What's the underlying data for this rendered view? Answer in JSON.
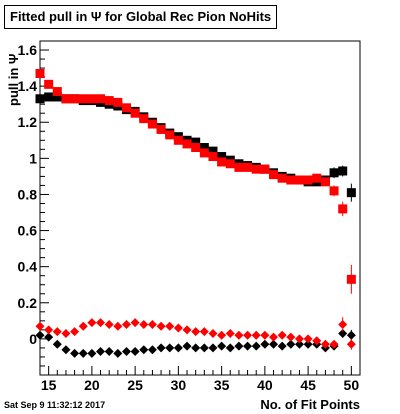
{
  "header": {
    "title": "Fitted pull in Ψ  for Global Rec Pion NoHits"
  },
  "footer": {
    "timestamp": "Sat Sep  9 11:32:12 2017"
  },
  "chart_data": {
    "type": "scatter",
    "title": "Fitted pull in Ψ  for Global Rec Pion NoHits",
    "xlabel": "No. of Fit Points",
    "ylabel": "pull in Ψ",
    "xlim": [
      14,
      51
    ],
    "ylim": [
      -0.2,
      1.65
    ],
    "xticks": [
      15,
      20,
      25,
      30,
      35,
      40,
      45,
      50
    ],
    "yticks": [
      0,
      0.2,
      0.4,
      0.6,
      0.8,
      1,
      1.2,
      1.4,
      1.6
    ],
    "ytick_labels": [
      "0",
      "0.2",
      "0.4",
      "0.6",
      "0.8",
      "1",
      "1.2",
      "1.4",
      "1.6"
    ],
    "grid": false,
    "series": [
      {
        "color": "#000000",
        "marker": "square",
        "x": [
          14,
          15,
          16,
          17,
          18,
          19,
          20,
          21,
          22,
          23,
          24,
          25,
          26,
          27,
          28,
          29,
          30,
          31,
          32,
          33,
          34,
          35,
          36,
          37,
          38,
          39,
          40,
          41,
          42,
          43,
          44,
          45,
          46,
          47,
          48,
          49,
          50
        ],
        "y": [
          1.33,
          1.34,
          1.34,
          1.33,
          1.33,
          1.32,
          1.32,
          1.31,
          1.3,
          1.29,
          1.27,
          1.26,
          1.23,
          1.2,
          1.17,
          1.14,
          1.12,
          1.1,
          1.09,
          1.06,
          1.04,
          1.01,
          0.99,
          0.97,
          0.96,
          0.95,
          0.94,
          0.92,
          0.9,
          0.89,
          0.88,
          0.87,
          0.87,
          0.88,
          0.92,
          0.93,
          0.81
        ],
        "yerr": [
          0.01,
          0.01,
          0.01,
          0.01,
          0.01,
          0.01,
          0.01,
          0.01,
          0.01,
          0.01,
          0.01,
          0.01,
          0.01,
          0.01,
          0.01,
          0.01,
          0.01,
          0.01,
          0.01,
          0.01,
          0.01,
          0.01,
          0.01,
          0.01,
          0.01,
          0.01,
          0.01,
          0.01,
          0.01,
          0.01,
          0.01,
          0.01,
          0.01,
          0.01,
          0.03,
          0.03,
          0.05
        ]
      },
      {
        "color": "#ff0000",
        "marker": "square",
        "x": [
          14,
          15,
          16,
          17,
          18,
          19,
          20,
          21,
          22,
          23,
          24,
          25,
          26,
          27,
          28,
          29,
          30,
          31,
          32,
          33,
          34,
          35,
          36,
          37,
          38,
          39,
          40,
          41,
          42,
          43,
          44,
          45,
          46,
          47,
          48,
          49,
          50
        ],
        "y": [
          1.47,
          1.41,
          1.37,
          1.33,
          1.33,
          1.33,
          1.33,
          1.33,
          1.32,
          1.31,
          1.28,
          1.25,
          1.22,
          1.19,
          1.16,
          1.13,
          1.1,
          1.08,
          1.06,
          1.03,
          1.01,
          0.98,
          0.97,
          0.95,
          0.95,
          0.94,
          0.94,
          0.91,
          0.89,
          0.88,
          0.88,
          0.88,
          0.89,
          0.87,
          0.82,
          0.72,
          0.33
        ],
        "yerr": [
          0.01,
          0.01,
          0.01,
          0.01,
          0.01,
          0.01,
          0.01,
          0.01,
          0.01,
          0.01,
          0.01,
          0.01,
          0.01,
          0.01,
          0.01,
          0.01,
          0.01,
          0.01,
          0.01,
          0.01,
          0.01,
          0.01,
          0.01,
          0.01,
          0.01,
          0.01,
          0.01,
          0.01,
          0.01,
          0.01,
          0.01,
          0.01,
          0.01,
          0.01,
          0.03,
          0.04,
          0.08
        ]
      },
      {
        "color": "#000000",
        "marker": "diamond",
        "x": [
          14,
          15,
          16,
          17,
          18,
          19,
          20,
          21,
          22,
          23,
          24,
          25,
          26,
          27,
          28,
          29,
          30,
          31,
          32,
          33,
          34,
          35,
          36,
          37,
          38,
          39,
          40,
          41,
          42,
          43,
          44,
          45,
          46,
          47,
          48,
          49,
          50
        ],
        "y": [
          0.02,
          0.01,
          -0.03,
          -0.06,
          -0.08,
          -0.08,
          -0.08,
          -0.07,
          -0.07,
          -0.08,
          -0.07,
          -0.07,
          -0.06,
          -0.06,
          -0.05,
          -0.05,
          -0.05,
          -0.04,
          -0.05,
          -0.05,
          -0.05,
          -0.04,
          -0.05,
          -0.04,
          -0.04,
          -0.04,
          -0.03,
          -0.03,
          -0.04,
          -0.03,
          -0.03,
          -0.03,
          -0.03,
          -0.05,
          -0.04,
          0.03,
          0.02
        ],
        "yerr": [
          0.01,
          0.01,
          0.01,
          0.01,
          0.01,
          0.01,
          0.01,
          0.01,
          0.01,
          0.01,
          0.01,
          0.01,
          0.01,
          0.01,
          0.01,
          0.01,
          0.01,
          0.01,
          0.01,
          0.01,
          0.01,
          0.01,
          0.01,
          0.01,
          0.01,
          0.01,
          0.01,
          0.01,
          0.01,
          0.01,
          0.01,
          0.01,
          0.01,
          0.01,
          0.02,
          0.02,
          0.03
        ]
      },
      {
        "color": "#ff0000",
        "marker": "diamond",
        "x": [
          14,
          15,
          16,
          17,
          18,
          19,
          20,
          21,
          22,
          23,
          24,
          25,
          26,
          27,
          28,
          29,
          30,
          31,
          32,
          33,
          34,
          35,
          36,
          37,
          38,
          39,
          40,
          41,
          42,
          43,
          44,
          45,
          46,
          47,
          48,
          49,
          50
        ],
        "y": [
          0.07,
          0.05,
          0.04,
          0.03,
          0.04,
          0.07,
          0.09,
          0.09,
          0.08,
          0.07,
          0.08,
          0.09,
          0.08,
          0.08,
          0.07,
          0.07,
          0.06,
          0.05,
          0.04,
          0.04,
          0.03,
          0.02,
          0.03,
          0.02,
          0.02,
          0.02,
          0.02,
          0.01,
          0.02,
          0.01,
          0.0,
          0.0,
          -0.01,
          -0.03,
          -0.03,
          0.08,
          -0.03
        ],
        "yerr": [
          0.01,
          0.01,
          0.01,
          0.01,
          0.01,
          0.01,
          0.01,
          0.01,
          0.01,
          0.01,
          0.01,
          0.01,
          0.01,
          0.01,
          0.01,
          0.01,
          0.01,
          0.01,
          0.01,
          0.01,
          0.01,
          0.01,
          0.01,
          0.01,
          0.01,
          0.01,
          0.01,
          0.01,
          0.01,
          0.01,
          0.01,
          0.01,
          0.01,
          0.01,
          0.02,
          0.04,
          0.03
        ]
      }
    ]
  }
}
